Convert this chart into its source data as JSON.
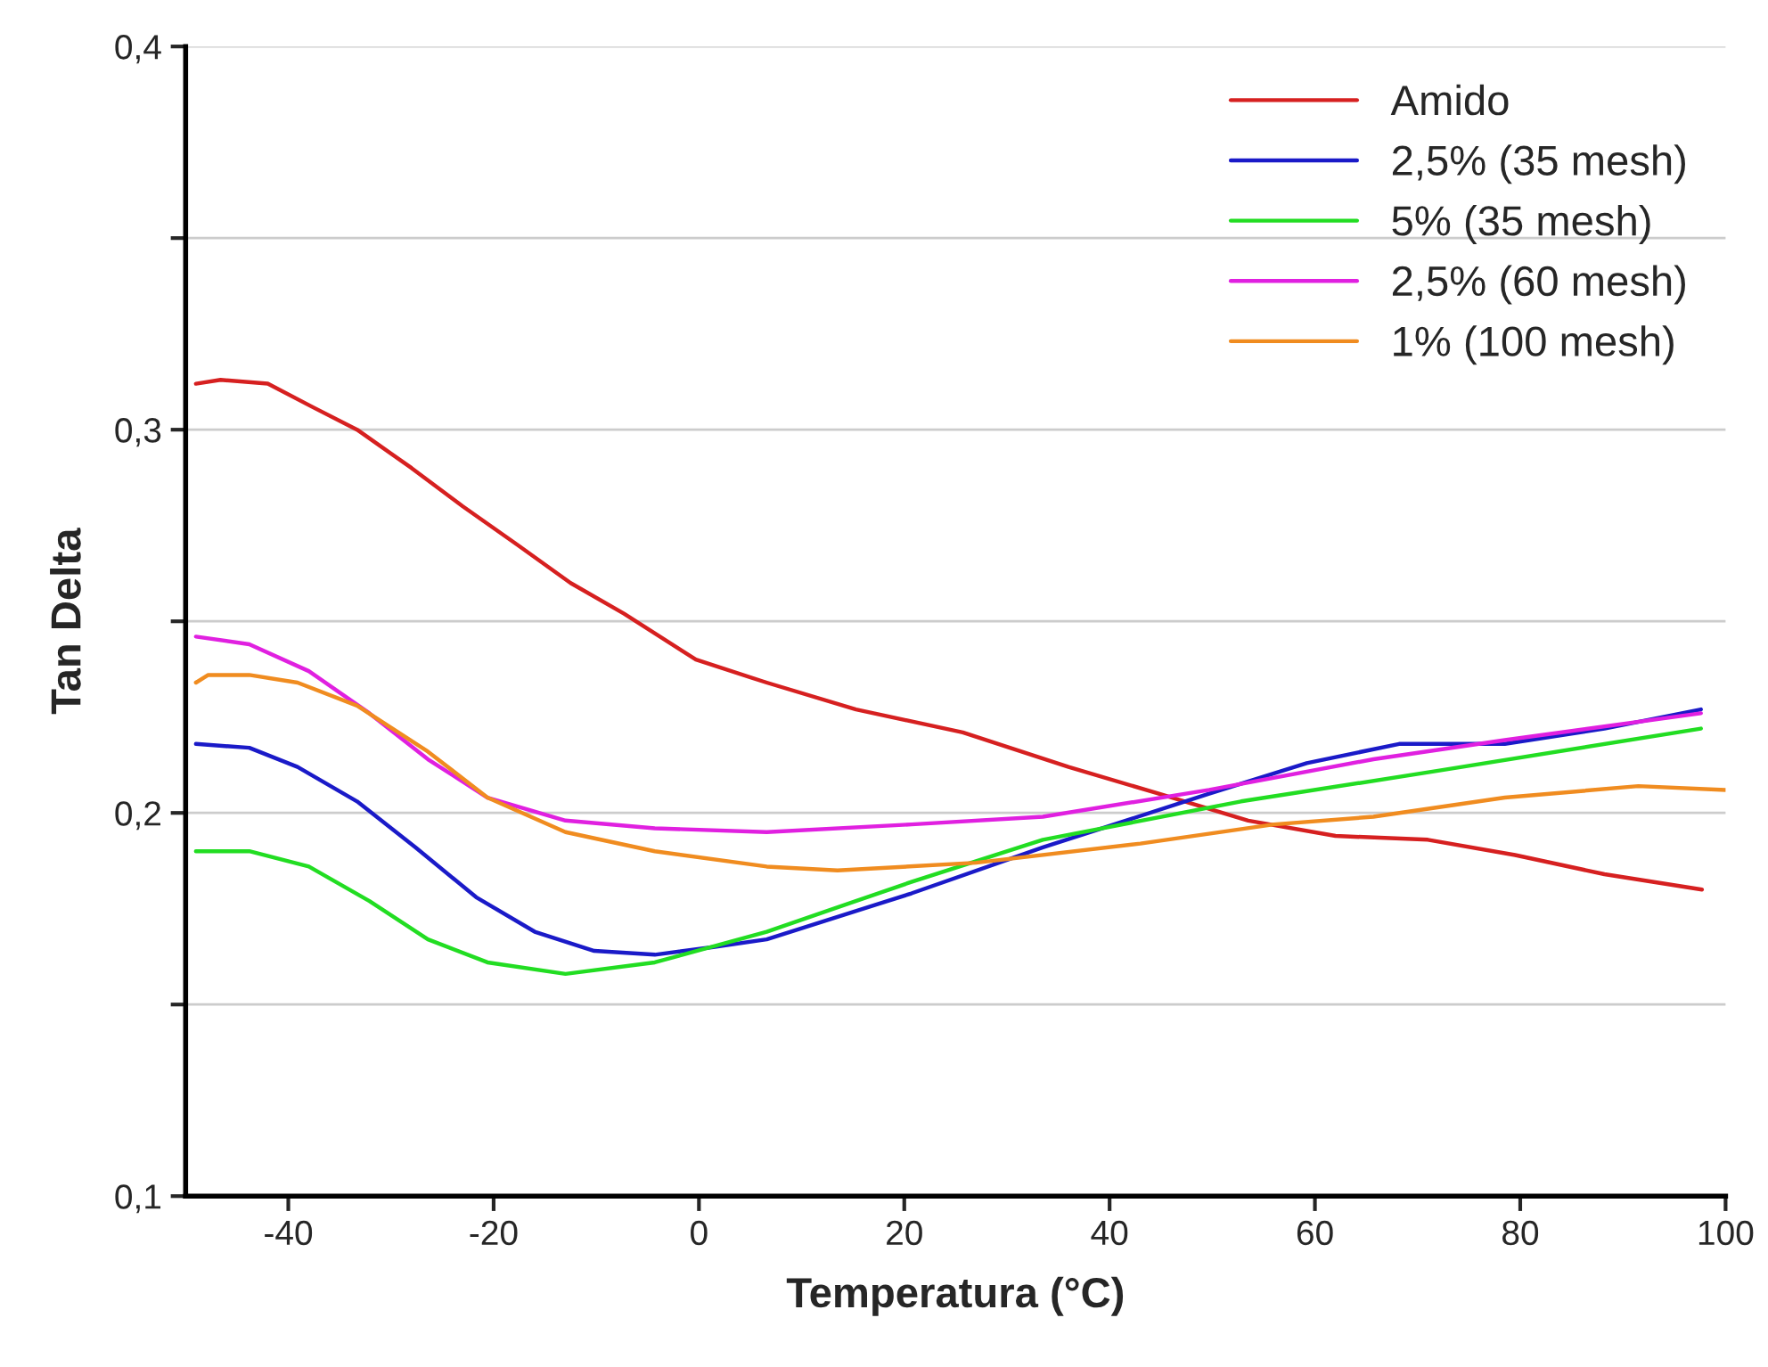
{
  "chart_data": {
    "type": "line",
    "xlabel": "Temperatura (°C)",
    "ylabel": "Tan Delta",
    "xlim": [
      -50,
      100
    ],
    "xticks": [
      -40,
      -20,
      0,
      20,
      40,
      60,
      80,
      100
    ],
    "ylim": [
      0.1,
      0.4
    ],
    "yticks": [
      {
        "value": 0.1,
        "label": "0,1"
      },
      {
        "value": 0.15,
        "label": null
      },
      {
        "value": 0.2,
        "label": "0,2"
      },
      {
        "value": 0.25,
        "label": null
      },
      {
        "value": 0.3,
        "label": "0,3"
      },
      {
        "value": 0.35,
        "label": null
      },
      {
        "value": 0.4,
        "label": "0,4"
      }
    ],
    "grid": "y",
    "legend": "top right",
    "marker": "none",
    "line_style": "solid",
    "series": [
      {
        "name": "Amido",
        "color": "#d62020",
        "x": [
          -49,
          -46.6,
          -42,
          -37.7,
          -33.3,
          -28,
          -23,
          -17.7,
          -12.5,
          -7.3,
          -0.3,
          6.6,
          15.3,
          25.7,
          36,
          44.8,
          53.5,
          62,
          71,
          79.5,
          88.2,
          97.7
        ],
        "values": [
          0.312,
          0.313,
          0.312,
          0.306,
          0.3,
          0.29,
          0.28,
          0.27,
          0.26,
          0.252,
          0.24,
          0.234,
          0.227,
          0.221,
          0.212,
          0.205,
          0.198,
          0.194,
          0.193,
          0.189,
          0.184,
          0.18
        ]
      },
      {
        "name": "2,5% (35 mesh)",
        "color": "#1a1ac8",
        "x": [
          -49,
          -43.8,
          -39.1,
          -33.3,
          -27.6,
          -21.7,
          -16,
          -10.2,
          -4.3,
          1.4,
          6.6,
          20.7,
          33.5,
          49.7,
          59.2,
          68.2,
          74,
          78.5,
          88.2,
          97.6
        ],
        "values": [
          0.218,
          0.217,
          0.212,
          0.203,
          0.191,
          0.178,
          0.169,
          0.164,
          0.163,
          0.165,
          0.167,
          0.179,
          0.191,
          0.205,
          0.213,
          0.218,
          0.218,
          0.218,
          0.222,
          0.227
        ]
      },
      {
        "name": "5% (35 mesh)",
        "color": "#22dd22",
        "x": [
          -49,
          -43.8,
          -38,
          -32.1,
          -26.4,
          -20.6,
          -13,
          -4.3,
          6.6,
          20.7,
          33.5,
          52.8,
          72,
          97.6
        ],
        "values": [
          0.19,
          0.19,
          0.186,
          0.177,
          0.167,
          0.161,
          0.158,
          0.161,
          0.169,
          0.182,
          0.193,
          0.203,
          0.211,
          0.222
        ]
      },
      {
        "name": "2,5% (60 mesh)",
        "color": "#e020e0",
        "x": [
          -49,
          -43.8,
          -38,
          -32.1,
          -26.4,
          -20.6,
          -13,
          -4.3,
          6.6,
          20.7,
          33.5,
          49.7,
          65.7,
          78.5,
          97.6
        ],
        "values": [
          0.246,
          0.244,
          0.237,
          0.226,
          0.214,
          0.204,
          0.198,
          0.196,
          0.195,
          0.197,
          0.199,
          0.206,
          0.214,
          0.219,
          0.226
        ]
      },
      {
        "name": "1% (100 mesh)",
        "color": "#f08c20",
        "x": [
          -49,
          -47.8,
          -43.8,
          -39.1,
          -33.3,
          -26.4,
          -20.6,
          -13,
          -4.3,
          6.6,
          13.5,
          27,
          43,
          56,
          65.7,
          78.5,
          91.5,
          100
        ],
        "values": [
          0.234,
          0.236,
          0.236,
          0.234,
          0.228,
          0.216,
          0.204,
          0.195,
          0.19,
          0.186,
          0.185,
          0.187,
          0.192,
          0.197,
          0.199,
          0.204,
          0.207,
          0.206
        ]
      }
    ]
  }
}
